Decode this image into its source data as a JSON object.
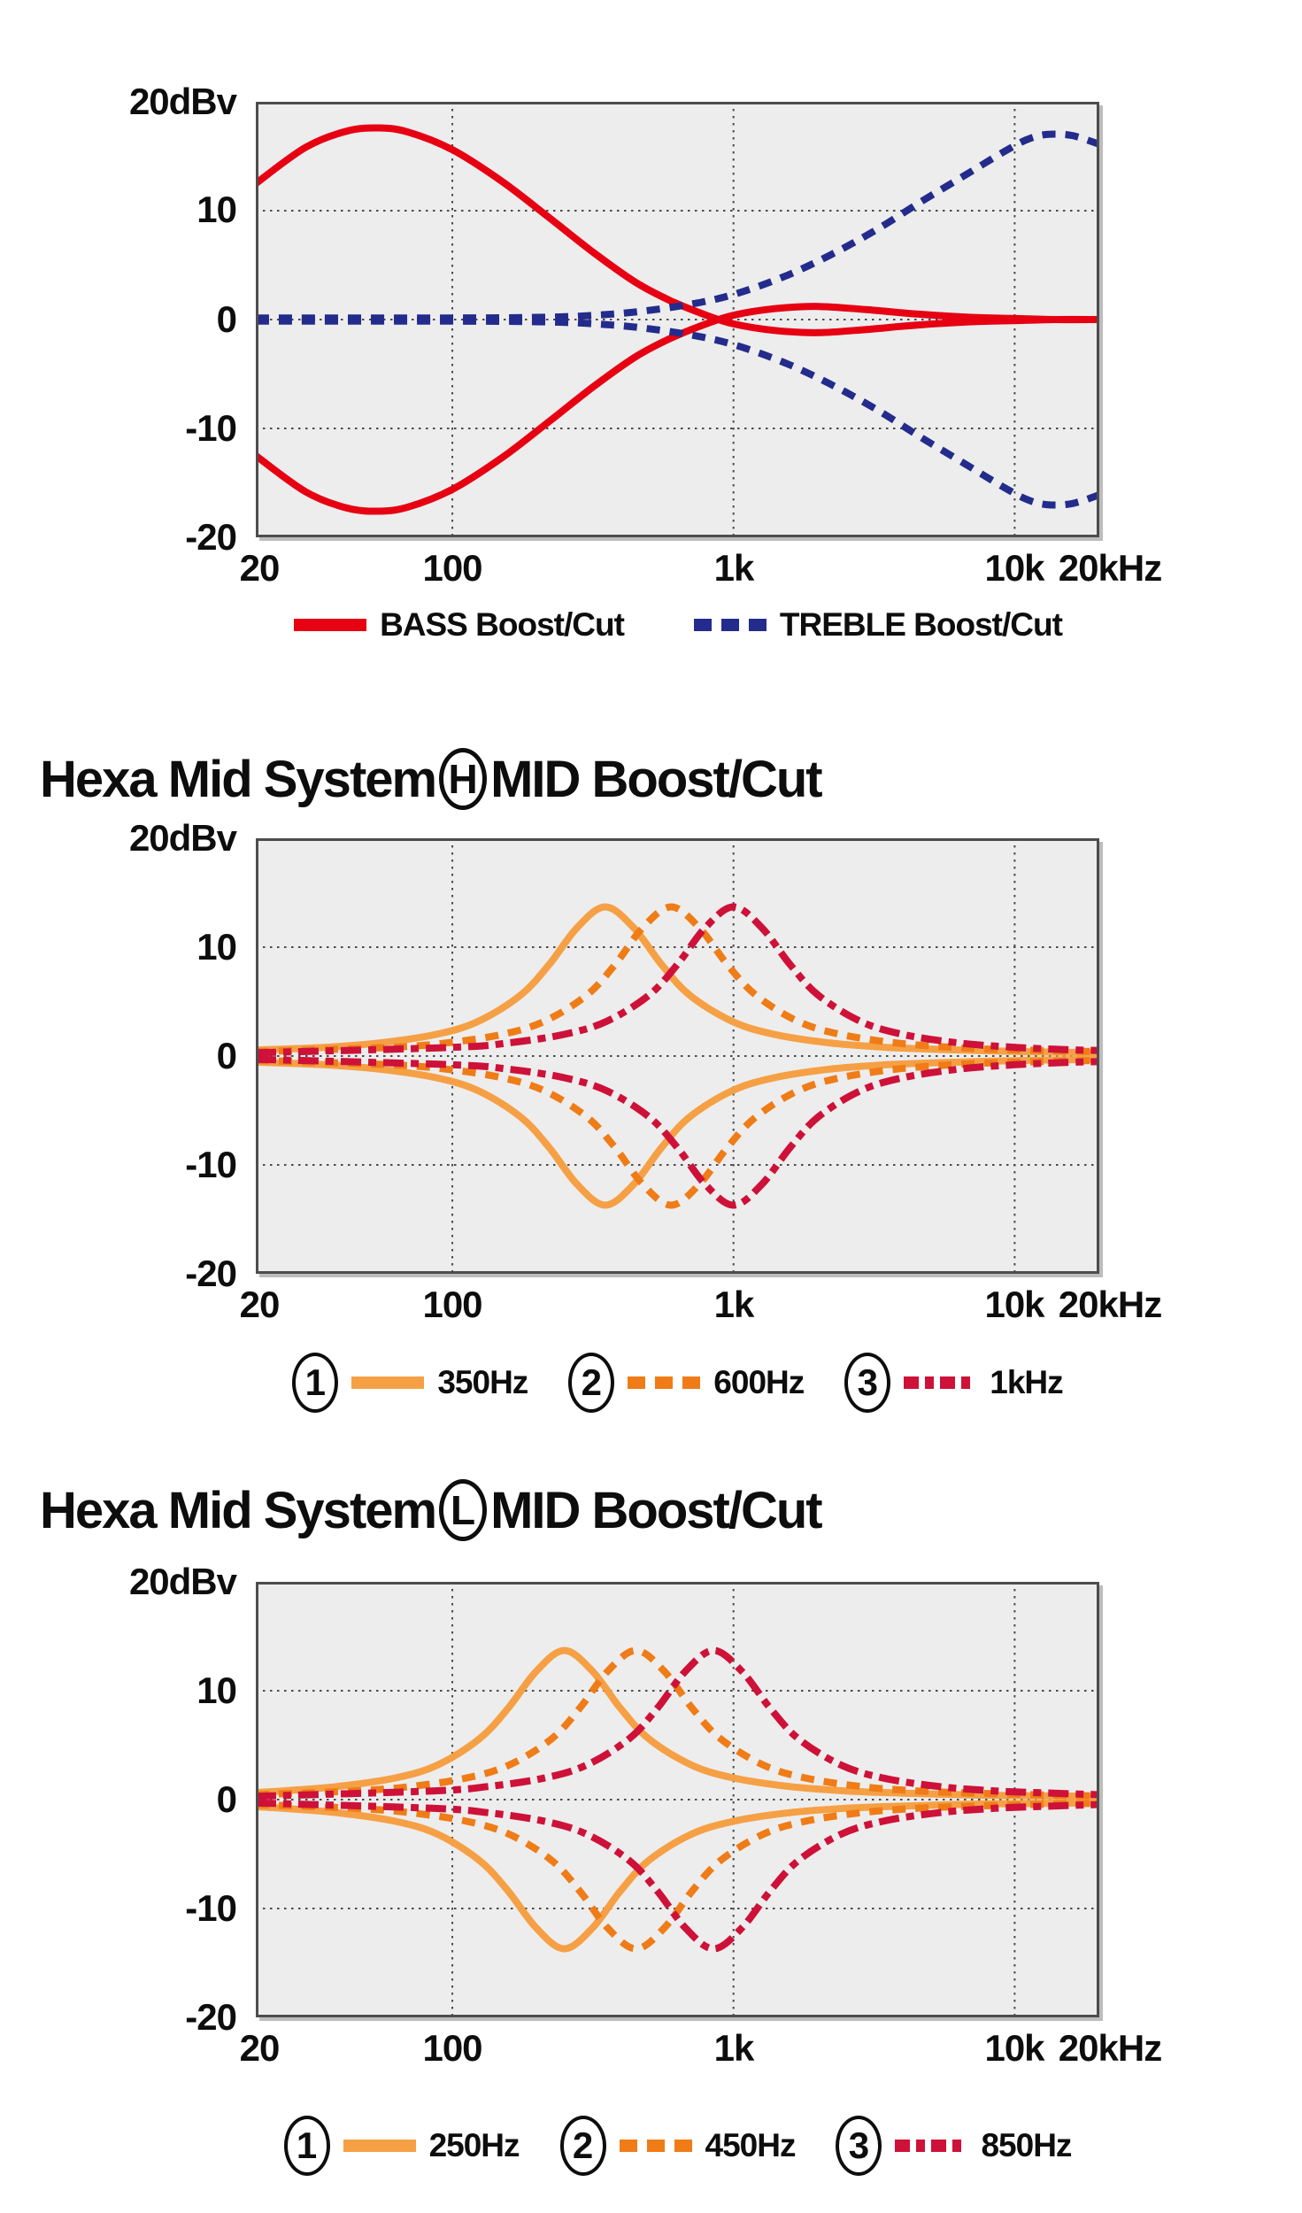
{
  "page": {
    "background": "#FFFFFF"
  },
  "colors": {
    "red": "#E60012",
    "blue": "#232C8C",
    "orange": "#F6A045",
    "orange_deep": "#EF7C17",
    "crimson": "#CE1138",
    "grid": "#4A4A4A",
    "plot_bg": "#EDEDED",
    "plot_border": "#4D4D4D",
    "text": "#0D0D0D"
  },
  "chart_data": [
    {
      "type": "line",
      "name": "bass-treble-tone-curves",
      "x_scale": "log",
      "xlim": [
        20,
        20000
      ],
      "ylim": [
        -20,
        20
      ],
      "x_unit": "Hz",
      "y_unit": "dBv",
      "grid": true,
      "legend_position": "bottom",
      "yticks": [
        {
          "db": 20,
          "label": "20dBv",
          "grid": false
        },
        {
          "db": 10,
          "label": "10",
          "grid": true
        },
        {
          "db": 0,
          "label": "0",
          "grid": true
        },
        {
          "db": -10,
          "label": "-10",
          "grid": true
        },
        {
          "db": -20,
          "label": "-20",
          "grid": false
        }
      ],
      "xticks": [
        {
          "hz": 20,
          "label": "20",
          "grid": false
        },
        {
          "hz": 100,
          "label": "100",
          "grid": true
        },
        {
          "hz": 1000,
          "label": "1k",
          "grid": true
        },
        {
          "hz": 10000,
          "label": "10k",
          "grid": true
        },
        {
          "hz": 20000,
          "label": "20kHz",
          "grid": false
        }
      ],
      "series": [
        {
          "name": "BASS Boost/Cut",
          "color": "#E60012",
          "dash": "solid",
          "mirror": true,
          "points": [
            [
              20,
              12.5
            ],
            [
              30,
              15.8
            ],
            [
              42,
              17.3
            ],
            [
              55,
              17.6
            ],
            [
              70,
              17.2
            ],
            [
              100,
              15.6
            ],
            [
              150,
              12.7
            ],
            [
              220,
              9.4
            ],
            [
              320,
              6.1
            ],
            [
              450,
              3.4
            ],
            [
              600,
              1.7
            ],
            [
              800,
              0.4
            ],
            [
              1000,
              -0.4
            ],
            [
              1400,
              -1.0
            ],
            [
              2000,
              -1.2
            ],
            [
              3000,
              -0.9
            ],
            [
              4500,
              -0.5
            ],
            [
              7000,
              -0.2
            ],
            [
              10000,
              -0.1
            ],
            [
              14000,
              0
            ],
            [
              20000,
              0
            ]
          ]
        },
        {
          "name": "TREBLE Boost/Cut",
          "color": "#232C8C",
          "dash": "dashed",
          "mirror": true,
          "points": [
            [
              20,
              0.15
            ],
            [
              100,
              0.15
            ],
            [
              200,
              0.2
            ],
            [
              300,
              0.35
            ],
            [
              450,
              0.7
            ],
            [
              700,
              1.4
            ],
            [
              1000,
              2.3
            ],
            [
              1500,
              3.9
            ],
            [
              2200,
              5.9
            ],
            [
              3200,
              8.2
            ],
            [
              4700,
              10.9
            ],
            [
              6800,
              13.4
            ],
            [
              9000,
              15.3
            ],
            [
              11000,
              16.5
            ],
            [
              13000,
              17.0
            ],
            [
              16000,
              16.9
            ],
            [
              20000,
              16.1
            ]
          ]
        }
      ],
      "legend": [
        {
          "label": "BASS Boost/Cut",
          "series": 0
        },
        {
          "label": "TREBLE Boost/Cut",
          "series": 1
        }
      ]
    },
    {
      "type": "line",
      "name": "hexa-mid-system-h-curves",
      "title": {
        "pre": "Hexa Mid System",
        "circled": "H",
        "post": "MID Boost/Cut"
      },
      "x_scale": "log",
      "xlim": [
        20,
        20000
      ],
      "ylim": [
        -20,
        20
      ],
      "x_unit": "Hz",
      "y_unit": "dBv",
      "grid": true,
      "legend_position": "bottom",
      "yticks": [
        {
          "db": 20,
          "label": "20dBv",
          "grid": false
        },
        {
          "db": 10,
          "label": "10",
          "grid": true
        },
        {
          "db": 0,
          "label": "0",
          "grid": true
        },
        {
          "db": -10,
          "label": "-10",
          "grid": true
        },
        {
          "db": -20,
          "label": "-20",
          "grid": false
        }
      ],
      "xticks": [
        {
          "hz": 20,
          "label": "20",
          "grid": false
        },
        {
          "hz": 100,
          "label": "100",
          "grid": true
        },
        {
          "hz": 1000,
          "label": "1k",
          "grid": true
        },
        {
          "hz": 10000,
          "label": "10k",
          "grid": true
        },
        {
          "hz": 20000,
          "label": "20kHz",
          "grid": false
        }
      ],
      "series": [
        {
          "name": "350Hz",
          "color": "#F6A045",
          "dash": "solid",
          "mirror": true,
          "points": [
            [
              20,
              0.55
            ],
            [
              35,
              0.8
            ],
            [
              55,
              1.2
            ],
            [
              88,
              2.0
            ],
            [
              124,
              3.2
            ],
            [
              175,
              5.6
            ],
            [
              221,
              8.4
            ],
            [
              278,
              11.8
            ],
            [
              350,
              13.7
            ],
            [
              441,
              11.8
            ],
            [
              555,
              8.4
            ],
            [
              698,
              5.6
            ],
            [
              986,
              3.2
            ],
            [
              1390,
              2.0
            ],
            [
              2200,
              1.2
            ],
            [
              3500,
              0.8
            ],
            [
              5500,
              0.6
            ],
            [
              11000,
              0.4
            ],
            [
              20000,
              0.3
            ]
          ]
        },
        {
          "name": "600Hz",
          "color": "#EF7C17",
          "dash": "dashed",
          "mirror": true,
          "points": [
            [
              20,
              0.4
            ],
            [
              60,
              0.8
            ],
            [
              95,
              1.2
            ],
            [
              151,
              2.0
            ],
            [
              213,
              3.2
            ],
            [
              301,
              5.6
            ],
            [
              379,
              8.4
            ],
            [
              476,
              11.8
            ],
            [
              600,
              13.7
            ],
            [
              755,
              11.8
            ],
            [
              951,
              8.4
            ],
            [
              1200,
              5.6
            ],
            [
              1690,
              3.2
            ],
            [
              2390,
              2.0
            ],
            [
              3780,
              1.2
            ],
            [
              6000,
              0.8
            ],
            [
              8900,
              0.6
            ],
            [
              20000,
              0.4
            ]
          ]
        },
        {
          "name": "1kHz",
          "color": "#CE1138",
          "dash": "dashdot",
          "mirror": true,
          "points": [
            [
              20,
              0.3
            ],
            [
              100,
              0.8
            ],
            [
              158,
              1.2
            ],
            [
              251,
              2.0
            ],
            [
              355,
              3.2
            ],
            [
              501,
              5.6
            ],
            [
              631,
              8.4
            ],
            [
              794,
              11.8
            ],
            [
              1000,
              13.7
            ],
            [
              1260,
              11.8
            ],
            [
              1590,
              8.4
            ],
            [
              2000,
              5.6
            ],
            [
              2820,
              3.2
            ],
            [
              3980,
              2.0
            ],
            [
              6310,
              1.2
            ],
            [
              10000,
              0.8
            ],
            [
              14800,
              0.6
            ],
            [
              20000,
              0.5
            ]
          ]
        }
      ],
      "legend": [
        {
          "num": "1",
          "label": "350Hz",
          "series": 0
        },
        {
          "num": "2",
          "label": "600Hz",
          "series": 1
        },
        {
          "num": "3",
          "label": "1kHz",
          "series": 2
        }
      ]
    },
    {
      "type": "line",
      "name": "hexa-mid-system-l-curves",
      "title": {
        "pre": "Hexa Mid System",
        "circled": "L",
        "post": "MID Boost/Cut"
      },
      "x_scale": "log",
      "xlim": [
        20,
        20000
      ],
      "ylim": [
        -20,
        20
      ],
      "x_unit": "Hz",
      "y_unit": "dBv",
      "grid": true,
      "legend_position": "bottom",
      "yticks": [
        {
          "db": 20,
          "label": "20dBv",
          "grid": false
        },
        {
          "db": 10,
          "label": "10",
          "grid": true
        },
        {
          "db": 0,
          "label": "0",
          "grid": true
        },
        {
          "db": -10,
          "label": "-10",
          "grid": true
        },
        {
          "db": -20,
          "label": "-20",
          "grid": false
        }
      ],
      "xticks": [
        {
          "hz": 20,
          "label": "20",
          "grid": false
        },
        {
          "hz": 100,
          "label": "100",
          "grid": true
        },
        {
          "hz": 1000,
          "label": "1k",
          "grid": true
        },
        {
          "hz": 10000,
          "label": "10k",
          "grid": true
        },
        {
          "hz": 20000,
          "label": "20kHz",
          "grid": false
        }
      ],
      "series": [
        {
          "name": "250Hz",
          "color": "#F6A045",
          "dash": "solid",
          "mirror": true,
          "points": [
            [
              20,
              0.65
            ],
            [
              25,
              0.8
            ],
            [
              39,
              1.2
            ],
            [
              63,
              2.0
            ],
            [
              89,
              3.2
            ],
            [
              125,
              5.6
            ],
            [
              158,
              8.4
            ],
            [
              199,
              11.8
            ],
            [
              250,
              13.7
            ],
            [
              315,
              11.8
            ],
            [
              396,
              8.4
            ],
            [
              499,
              5.6
            ],
            [
              705,
              3.2
            ],
            [
              995,
              2.0
            ],
            [
              1580,
              1.2
            ],
            [
              2500,
              0.8
            ],
            [
              3950,
              0.6
            ],
            [
              7900,
              0.4
            ],
            [
              20000,
              0.3
            ]
          ]
        },
        {
          "name": "450Hz",
          "color": "#EF7C17",
          "dash": "dashed",
          "mirror": true,
          "points": [
            [
              20,
              0.45
            ],
            [
              45,
              0.8
            ],
            [
              71,
              1.2
            ],
            [
              113,
              2.0
            ],
            [
              160,
              3.2
            ],
            [
              226,
              5.6
            ],
            [
              284,
              8.4
            ],
            [
              357,
              11.8
            ],
            [
              450,
              13.7
            ],
            [
              567,
              11.8
            ],
            [
              713,
              8.4
            ],
            [
              898,
              5.6
            ],
            [
              1270,
              3.2
            ],
            [
              1790,
              2.0
            ],
            [
              2840,
              1.2
            ],
            [
              4500,
              0.8
            ],
            [
              7110,
              0.6
            ],
            [
              14200,
              0.4
            ],
            [
              20000,
              0.35
            ]
          ]
        },
        {
          "name": "850Hz",
          "color": "#CE1138",
          "dash": "dashdot",
          "mirror": true,
          "points": [
            [
              20,
              0.3
            ],
            [
              85,
              0.8
            ],
            [
              134,
              1.2
            ],
            [
              214,
              2.0
            ],
            [
              302,
              3.2
            ],
            [
              426,
              5.6
            ],
            [
              536,
              8.4
            ],
            [
              675,
              11.8
            ],
            [
              850,
              13.7
            ],
            [
              1070,
              11.8
            ],
            [
              1350,
              8.4
            ],
            [
              1700,
              5.6
            ],
            [
              2400,
              3.2
            ],
            [
              3380,
              2.0
            ],
            [
              5370,
              1.2
            ],
            [
              8500,
              0.8
            ],
            [
              13400,
              0.6
            ],
            [
              20000,
              0.45
            ]
          ]
        }
      ],
      "legend": [
        {
          "num": "1",
          "label": "250Hz",
          "series": 0
        },
        {
          "num": "2",
          "label": "450Hz",
          "series": 1
        },
        {
          "num": "3",
          "label": "850Hz",
          "series": 2
        }
      ]
    }
  ]
}
